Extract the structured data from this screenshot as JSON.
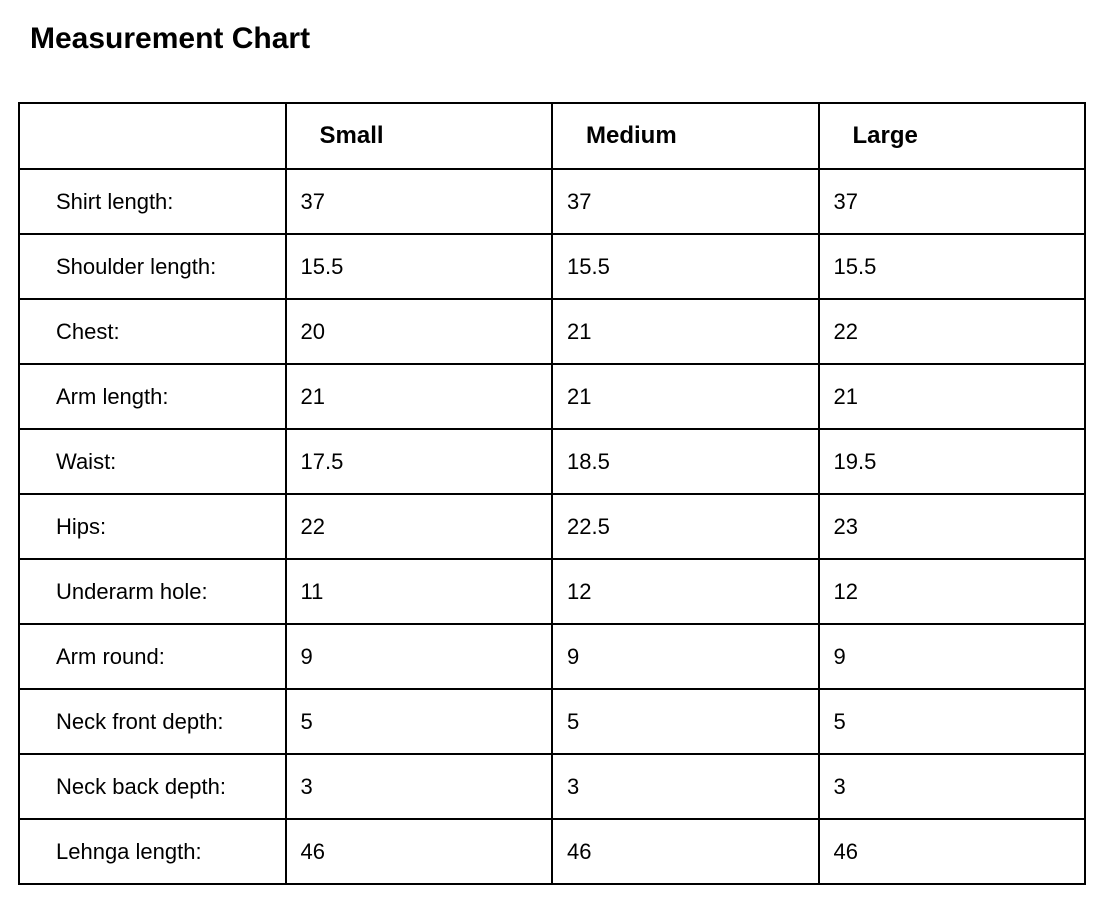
{
  "page_title": "Measurement Chart",
  "colors": {
    "background": "#ffffff",
    "text": "#000000",
    "table_border": "#000000"
  },
  "chart_data": {
    "type": "table",
    "title": "Measurement Chart",
    "columns": [
      "",
      "Small",
      "Medium",
      "Large"
    ],
    "rows": [
      {
        "label": "Shirt length:",
        "values": [
          "37",
          "37",
          "37"
        ]
      },
      {
        "label": "Shoulder length:",
        "values": [
          "15.5",
          "15.5",
          "15.5"
        ]
      },
      {
        "label": "Chest:",
        "values": [
          "20",
          "21",
          "22"
        ]
      },
      {
        "label": "Arm length:",
        "values": [
          "21",
          "21",
          "21"
        ]
      },
      {
        "label": "Waist:",
        "values": [
          "17.5",
          "18.5",
          "19.5"
        ]
      },
      {
        "label": "Hips:",
        "values": [
          "22",
          "22.5",
          "23"
        ]
      },
      {
        "label": "Underarm hole:",
        "values": [
          "11",
          "12",
          "12"
        ]
      },
      {
        "label": "Arm round:",
        "values": [
          "9",
          "9",
          "9"
        ]
      },
      {
        "label": "Neck front depth:",
        "values": [
          "5",
          "5",
          "5"
        ]
      },
      {
        "label": "Neck back depth:",
        "values": [
          "3",
          "3",
          "3"
        ]
      },
      {
        "label": "Lehnga length:",
        "values": [
          "46",
          "46",
          "46"
        ]
      }
    ]
  }
}
